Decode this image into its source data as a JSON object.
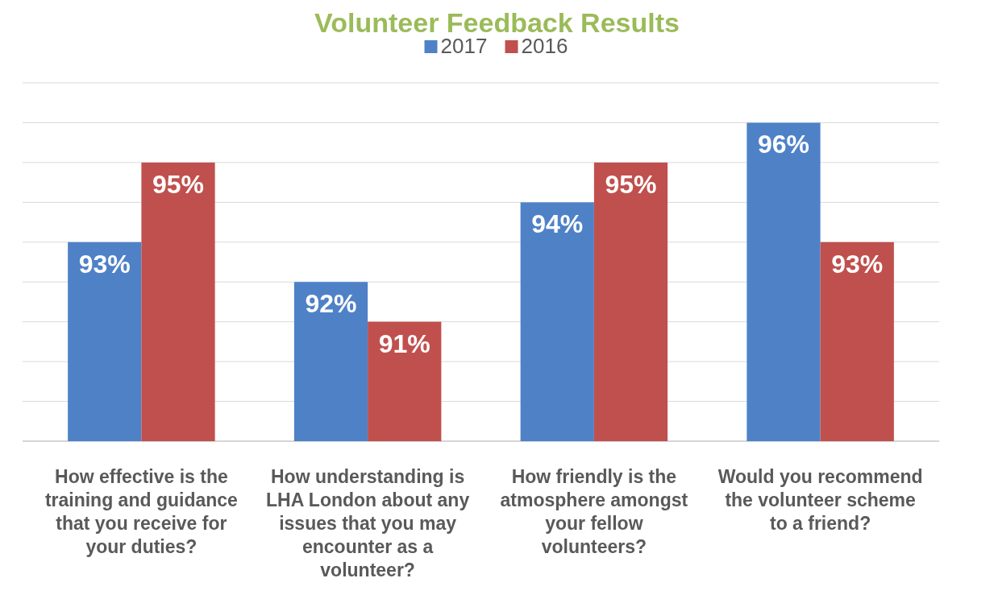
{
  "chart_data": {
    "type": "bar",
    "title": "Volunteer Feedback Results",
    "categories": [
      "How effective is the training and guidance that you receive for your duties?",
      "How understanding is LHA London about any issues that you may encounter as a volunteer?",
      "How friendly is the atmosphere amongst your fellow volunteers?",
      "Would you recommend the volunteer scheme to a friend?"
    ],
    "series": [
      {
        "name": "2017",
        "color": "#4f81c7",
        "values": [
          93,
          92,
          94,
          96
        ],
        "value_labels": [
          "93%",
          "92%",
          "94%",
          "96%"
        ]
      },
      {
        "name": "2016",
        "color": "#c0504d",
        "values": [
          95,
          91,
          95,
          93
        ],
        "value_labels": [
          "95%",
          "91%",
          "95%",
          "93%"
        ]
      }
    ],
    "ylim": [
      88,
      97
    ],
    "tick_labels": "x",
    "grid": "y",
    "legend": "top"
  }
}
